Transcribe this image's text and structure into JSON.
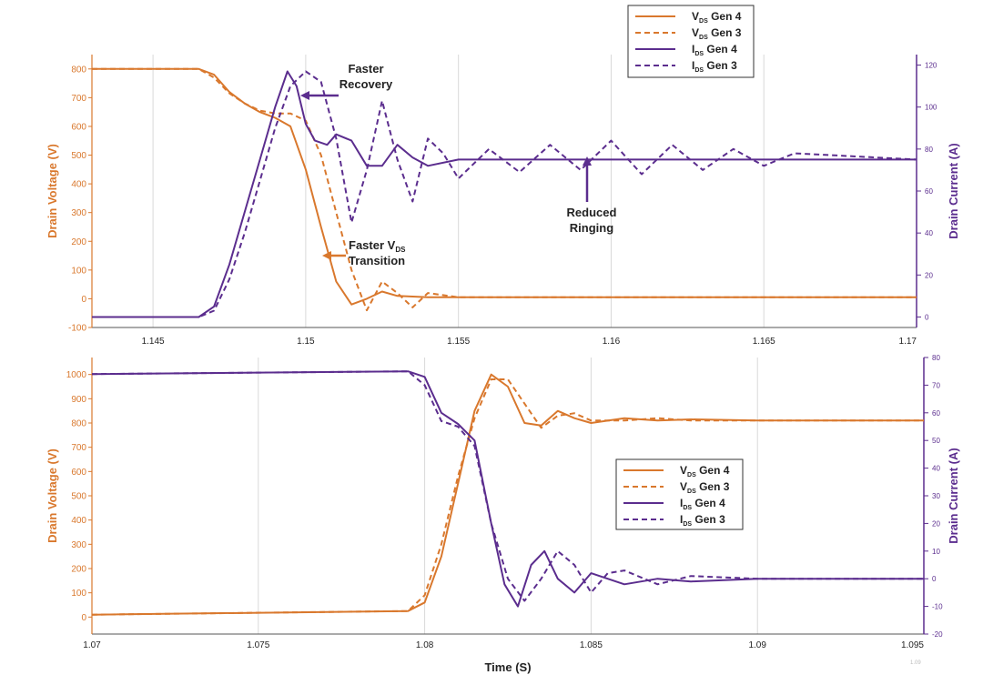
{
  "colors": {
    "orange": "#D9782D",
    "purple": "#5B2D8E",
    "grid": "#d9d9d9",
    "axis": "#555555"
  },
  "legend": [
    {
      "main": "V",
      "sub": "DS",
      "rest": " Gen 4",
      "color": "orange",
      "dash": false
    },
    {
      "main": "V",
      "sub": "DS",
      "rest": " Gen 3",
      "color": "orange",
      "dash": true
    },
    {
      "main": "I",
      "sub": "DS",
      "rest": " Gen 4",
      "color": "purple",
      "dash": false
    },
    {
      "main": "I",
      "sub": "DS",
      "rest": " Gen 3",
      "color": "purple",
      "dash": true
    }
  ],
  "chart_data": [
    {
      "type": "line",
      "xlim": [
        1.143,
        1.17
      ],
      "ylim": [
        -100,
        850
      ],
      "y2lim": [
        -5,
        125
      ],
      "ylabel": "Drain Voltage (V)",
      "y2label": "Drain Current (A)",
      "xlabel": "",
      "x_ticks": [
        "1.145",
        "1.15",
        "1.155",
        "1.16",
        "1.165",
        "1.17"
      ],
      "y_ticks": [
        "-100",
        "0",
        "100",
        "200",
        "300",
        "400",
        "500",
        "600",
        "700",
        "800"
      ],
      "y2_ticks": [
        "0",
        "20",
        "40",
        "60",
        "80",
        "100",
        "120"
      ],
      "legend_position": "top-right",
      "series": [
        {
          "name": "V_DS Gen 4",
          "axis": "left",
          "style": "solid",
          "color": "orange",
          "x": [
            1.143,
            1.1465,
            1.147,
            1.1475,
            1.148,
            1.1485,
            1.149,
            1.1495,
            1.15,
            1.1505,
            1.151,
            1.1515,
            1.152,
            1.1525,
            1.153,
            1.154,
            1.155,
            1.16,
            1.165,
            1.17
          ],
          "y": [
            800,
            800,
            780,
            720,
            680,
            650,
            630,
            600,
            450,
            250,
            60,
            -20,
            0,
            25,
            10,
            5,
            5,
            5,
            5,
            5
          ]
        },
        {
          "name": "V_DS Gen 3",
          "axis": "left",
          "style": "dash",
          "color": "orange",
          "x": [
            1.143,
            1.1465,
            1.147,
            1.1475,
            1.148,
            1.1485,
            1.149,
            1.1495,
            1.15,
            1.1505,
            1.151,
            1.1515,
            1.152,
            1.1525,
            1.153,
            1.1535,
            1.154,
            1.155,
            1.16,
            1.165,
            1.17
          ],
          "y": [
            800,
            800,
            770,
            715,
            680,
            655,
            645,
            645,
            620,
            500,
            300,
            100,
            -40,
            60,
            20,
            -30,
            20,
            5,
            5,
            5,
            5
          ]
        },
        {
          "name": "I_DS Gen 4",
          "axis": "right",
          "style": "solid",
          "color": "purple",
          "x": [
            1.143,
            1.1465,
            1.147,
            1.1475,
            1.148,
            1.1485,
            1.149,
            1.1494,
            1.1497,
            1.15,
            1.1503,
            1.1507,
            1.151,
            1.1515,
            1.152,
            1.1525,
            1.153,
            1.1535,
            1.154,
            1.155,
            1.16,
            1.165,
            1.17
          ],
          "y": [
            0,
            0,
            5,
            25,
            50,
            75,
            100,
            117,
            110,
            92,
            84,
            82,
            87,
            84,
            72,
            72,
            82,
            76,
            72,
            75,
            75,
            75,
            75
          ]
        },
        {
          "name": "I_DS Gen 3",
          "axis": "right",
          "style": "dash",
          "color": "purple",
          "x": [
            1.143,
            1.1465,
            1.147,
            1.1475,
            1.148,
            1.1485,
            1.149,
            1.1495,
            1.15,
            1.1505,
            1.151,
            1.1515,
            1.152,
            1.1525,
            1.153,
            1.1535,
            1.154,
            1.1545,
            1.155,
            1.156,
            1.157,
            1.158,
            1.159,
            1.16,
            1.161,
            1.162,
            1.163,
            1.164,
            1.165,
            1.166,
            1.17
          ],
          "y": [
            0,
            0,
            3,
            18,
            40,
            65,
            90,
            110,
            117,
            112,
            85,
            45,
            70,
            103,
            75,
            55,
            85,
            78,
            66,
            80,
            69,
            82,
            70,
            84,
            68,
            82,
            70,
            80,
            72,
            78,
            75
          ]
        }
      ]
    },
    {
      "type": "line",
      "xlim": [
        1.07,
        1.095
      ],
      "ylim": [
        -70,
        1070
      ],
      "y2lim": [
        -20,
        80
      ],
      "ylabel": "Drain Voltage (V)",
      "y2label": "Drain Current (A)",
      "xlabel": "Time (S)",
      "x_ticks": [
        "1.07",
        "1.075",
        "1.08",
        "1.085",
        "1.09",
        "1.095"
      ],
      "y_ticks": [
        "0",
        "100",
        "200",
        "300",
        "400",
        "500",
        "600",
        "700",
        "800",
        "900",
        "1000"
      ],
      "y2_ticks": [
        "-20",
        "-10",
        "0",
        "10",
        "20",
        "30",
        "40",
        "50",
        "60",
        "70",
        "80"
      ],
      "legend_position": "center-right",
      "series": [
        {
          "name": "V_DS Gen 4",
          "axis": "left",
          "style": "solid",
          "color": "orange",
          "x": [
            1.07,
            1.0795,
            1.08,
            1.0805,
            1.081,
            1.0815,
            1.082,
            1.0825,
            1.083,
            1.0835,
            1.084,
            1.0845,
            1.085,
            1.086,
            1.087,
            1.088,
            1.09,
            1.095
          ],
          "y": [
            10,
            25,
            60,
            250,
            550,
            850,
            1000,
            950,
            800,
            790,
            850,
            820,
            800,
            820,
            810,
            815,
            810,
            810
          ]
        },
        {
          "name": "V_DS Gen 3",
          "axis": "left",
          "style": "dash",
          "color": "orange",
          "x": [
            1.07,
            1.0795,
            1.08,
            1.0805,
            1.081,
            1.0815,
            1.082,
            1.0825,
            1.083,
            1.0835,
            1.084,
            1.0845,
            1.085,
            1.086,
            1.087,
            1.088,
            1.09,
            1.095
          ],
          "y": [
            10,
            25,
            90,
            300,
            580,
            820,
            980,
            980,
            880,
            780,
            830,
            840,
            810,
            810,
            820,
            810,
            810,
            810
          ]
        },
        {
          "name": "I_DS Gen 4",
          "axis": "right",
          "style": "solid",
          "color": "purple",
          "x": [
            1.07,
            1.0795,
            1.08,
            1.0805,
            1.081,
            1.0815,
            1.082,
            1.0824,
            1.0828,
            1.0832,
            1.0836,
            1.084,
            1.0845,
            1.085,
            1.086,
            1.087,
            1.088,
            1.09,
            1.095
          ],
          "y": [
            74,
            75,
            73,
            60,
            56,
            50,
            20,
            -2,
            -10,
            5,
            10,
            0,
            -5,
            2,
            -2,
            0,
            -1,
            0,
            0
          ]
        },
        {
          "name": "I_DS Gen 3",
          "axis": "right",
          "style": "dash",
          "color": "purple",
          "x": [
            1.07,
            1.0795,
            1.08,
            1.0805,
            1.081,
            1.0815,
            1.082,
            1.0825,
            1.083,
            1.0835,
            1.084,
            1.0845,
            1.085,
            1.0855,
            1.086,
            1.087,
            1.088,
            1.09,
            1.095
          ],
          "y": [
            74,
            75,
            70,
            57,
            55,
            48,
            20,
            0,
            -8,
            0,
            10,
            5,
            -5,
            2,
            3,
            -2,
            1,
            0,
            0
          ]
        }
      ]
    }
  ],
  "annotations": {
    "faster_recovery": [
      "Faster",
      "Recovery"
    ],
    "reduced_ringing": [
      "Reduced",
      "Ringing"
    ],
    "faster_vds_line1_main": "Faster V",
    "faster_vds_line1_sub": "DS",
    "faster_vds_line2": "Transition",
    "corner_mark": "1.09"
  }
}
